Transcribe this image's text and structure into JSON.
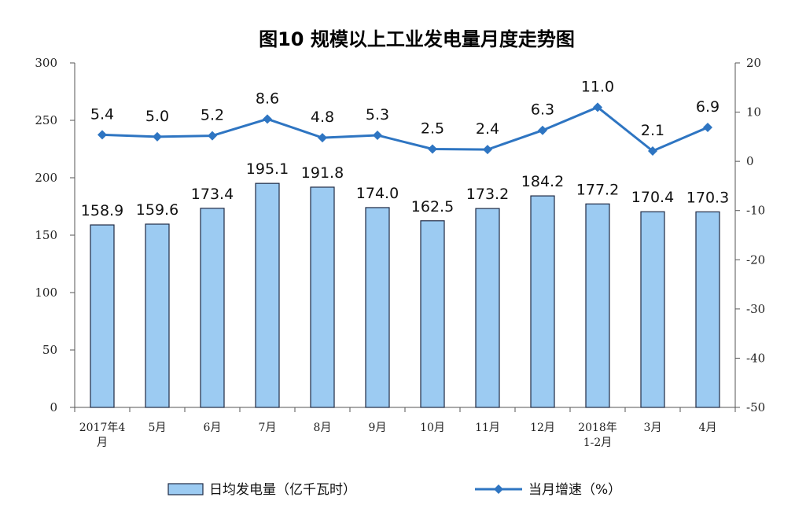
{
  "colors": {
    "bar_fill": "#9CCBF2",
    "bar_stroke": "#1f2a44",
    "line": "#2E75C2",
    "axis": "#555555"
  },
  "chart_data": {
    "type": "bar",
    "title": "图10 规模以上工业发电量月度走势图",
    "categories": [
      "2017年4月",
      "5月",
      "6月",
      "7月",
      "8月",
      "9月",
      "10月",
      "11月",
      "12月",
      "2018年1-2月",
      "3月",
      "4月"
    ],
    "category_lines": [
      [
        "2017年4",
        "月"
      ],
      [
        "5月"
      ],
      [
        "6月"
      ],
      [
        "7月"
      ],
      [
        "8月"
      ],
      [
        "9月"
      ],
      [
        "10月"
      ],
      [
        "11月"
      ],
      [
        "12月"
      ],
      [
        "2018年",
        "1-2月"
      ],
      [
        "3月"
      ],
      [
        "4月"
      ]
    ],
    "series": [
      {
        "name": "日均发电量（亿千瓦时）",
        "type": "bar",
        "axis": "left",
        "values": [
          158.9,
          159.6,
          173.4,
          195.1,
          191.8,
          174.0,
          162.5,
          173.2,
          184.2,
          177.2,
          170.4,
          170.3
        ],
        "labels": [
          "158.9",
          "159.6",
          "173.4",
          "195.1",
          "191.8",
          "174.0",
          "162.5",
          "173.2",
          "184.2",
          "177.2",
          "170.4",
          "170.3"
        ]
      },
      {
        "name": "当月增速（%）",
        "type": "line",
        "axis": "right",
        "values": [
          5.4,
          5.0,
          5.2,
          8.6,
          4.8,
          5.3,
          2.5,
          2.4,
          6.3,
          11.0,
          2.1,
          6.9
        ],
        "labels": [
          "5.4",
          "5.0",
          "5.2",
          "8.6",
          "4.8",
          "5.3",
          "2.5",
          "2.4",
          "6.3",
          "11.0",
          "2.1",
          "6.9"
        ]
      }
    ],
    "y_left": {
      "ylim": [
        0,
        300
      ],
      "ticks": [
        "0",
        "50",
        "100",
        "150",
        "200",
        "250",
        "300"
      ]
    },
    "y_right": {
      "ylim": [
        -50,
        20
      ],
      "ticks": [
        "-50",
        "-40",
        "-30",
        "-20",
        "-10",
        "0",
        "10",
        "20"
      ]
    },
    "grid": false,
    "legend_position": "bottom"
  }
}
